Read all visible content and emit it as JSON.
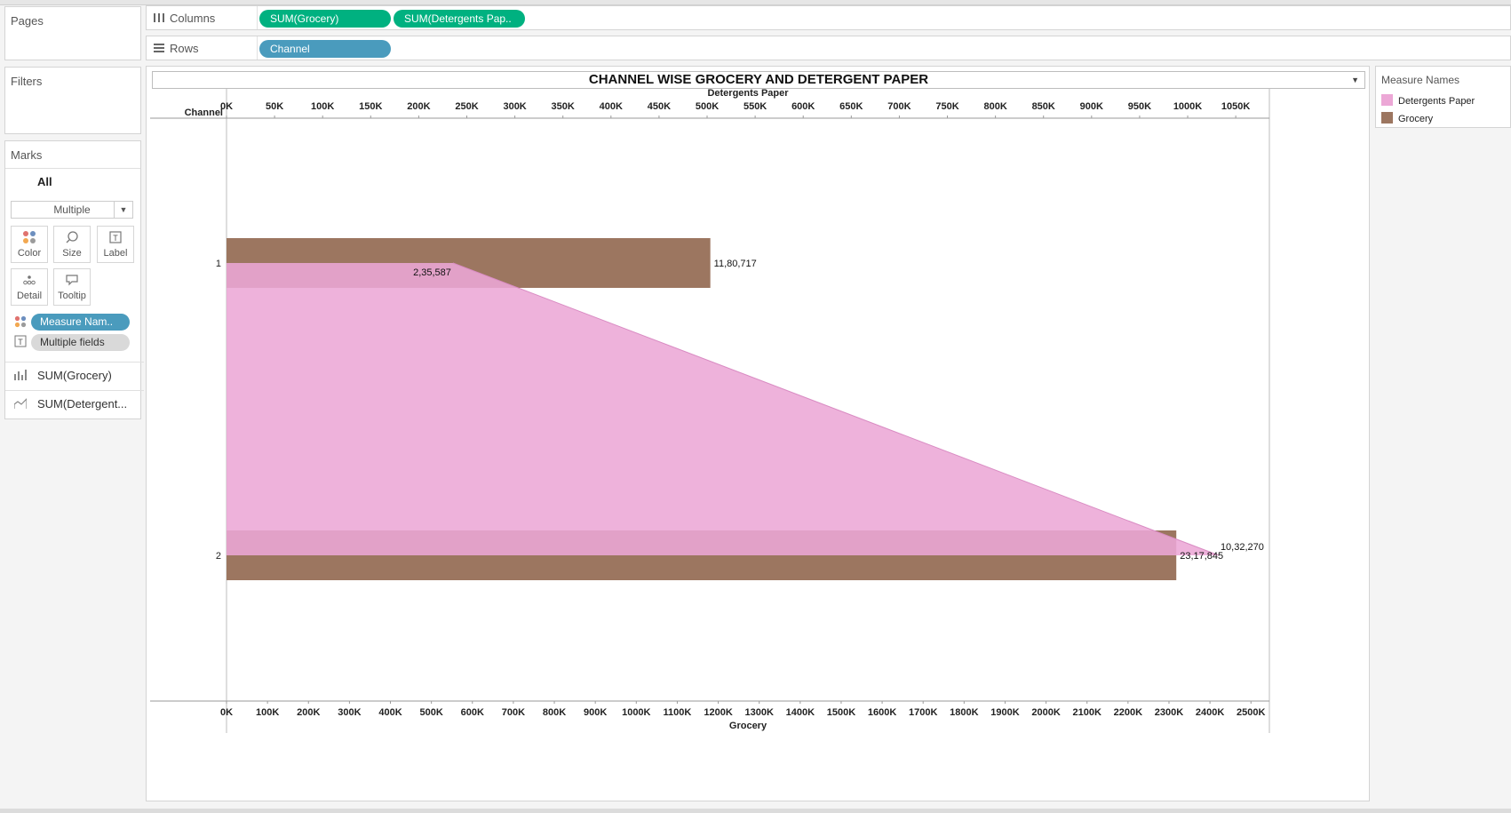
{
  "sidebar": {
    "pages_title": "Pages",
    "filters_title": "Filters",
    "marks": {
      "title": "Marks",
      "all_label": "All",
      "mark_type": "Multiple",
      "buttons": {
        "color": "Color",
        "size": "Size",
        "label": "Label",
        "detail": "Detail",
        "tooltip": "Tooltip"
      },
      "encodings": {
        "color_field": "Measure Nam..",
        "label_field": "Multiple fields"
      },
      "measures": [
        "SUM(Grocery)",
        "SUM(Detergent..."
      ]
    }
  },
  "shelves": {
    "columns_label": "Columns",
    "columns_pills": [
      "SUM(Grocery)",
      "SUM(Detergents Pap.."
    ],
    "rows_label": "Rows",
    "rows_pills": [
      "Channel"
    ]
  },
  "legend": {
    "title": "Measure Names",
    "items": [
      {
        "name": "Detergents Paper",
        "color": "#eca7d6"
      },
      {
        "name": "Grocery",
        "color": "#9c7660"
      }
    ]
  },
  "chart_data": {
    "type": "bar",
    "title": "CHANNEL WISE GROCERY AND DETERGENT PAPER",
    "row_header": "Channel",
    "categories": [
      "1",
      "2"
    ],
    "series": [
      {
        "name": "Grocery",
        "type": "bar",
        "values": [
          1180717,
          2317845
        ],
        "labels": [
          "11,80,717",
          "23,17,845"
        ],
        "color": "#9c7660",
        "axis": "bottom"
      },
      {
        "name": "Detergents Paper",
        "type": "area",
        "values": [
          235587,
          1032270
        ],
        "labels": [
          "2,35,587",
          "10,32,270"
        ],
        "color": "#eca7d6",
        "axis": "top"
      }
    ],
    "top_axis": {
      "label": "Detergents Paper",
      "range": [
        0,
        1085000
      ],
      "ticks": [
        0,
        50000,
        100000,
        150000,
        200000,
        250000,
        300000,
        350000,
        400000,
        450000,
        500000,
        550000,
        600000,
        650000,
        700000,
        750000,
        800000,
        850000,
        900000,
        950000,
        1000000,
        1050000
      ],
      "tick_labels": [
        "0K",
        "50K",
        "100K",
        "150K",
        "200K",
        "250K",
        "300K",
        "350K",
        "400K",
        "450K",
        "500K",
        "550K",
        "600K",
        "650K",
        "700K",
        "750K",
        "800K",
        "850K",
        "900K",
        "950K",
        "1000K",
        "1050K"
      ]
    },
    "bottom_axis": {
      "label": "Grocery",
      "range": [
        0,
        2545000
      ],
      "ticks": [
        0,
        100000,
        200000,
        300000,
        400000,
        500000,
        600000,
        700000,
        800000,
        900000,
        1000000,
        1100000,
        1200000,
        1300000,
        1400000,
        1500000,
        1600000,
        1700000,
        1800000,
        1900000,
        2000000,
        2100000,
        2200000,
        2300000,
        2400000,
        2500000
      ],
      "tick_labels": [
        "0K",
        "100K",
        "200K",
        "300K",
        "400K",
        "500K",
        "600K",
        "700K",
        "800K",
        "900K",
        "1000K",
        "1100K",
        "1200K",
        "1300K",
        "1400K",
        "1500K",
        "1600K",
        "1700K",
        "1800K",
        "1900K",
        "2000K",
        "2100K",
        "2200K",
        "2300K",
        "2400K",
        "2500K"
      ]
    },
    "grid": false,
    "legend_position": "right"
  }
}
